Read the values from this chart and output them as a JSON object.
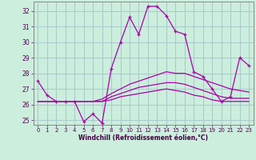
{
  "xlabel": "Windchill (Refroidissement éolien,°C)",
  "bg_color": "#cceedd",
  "grid_color": "#aacccc",
  "line_color": "#aa00aa",
  "ylim": [
    24.7,
    32.6
  ],
  "xlim": [
    -0.5,
    23.5
  ],
  "yticks": [
    25,
    26,
    27,
    28,
    29,
    30,
    31,
    32
  ],
  "xticks": [
    0,
    1,
    2,
    3,
    4,
    5,
    6,
    7,
    8,
    9,
    10,
    11,
    12,
    13,
    14,
    15,
    16,
    17,
    18,
    19,
    20,
    21,
    22,
    23
  ],
  "lines": [
    {
      "x": [
        0,
        1,
        2,
        3,
        4,
        5,
        6,
        7,
        8,
        9,
        10,
        11,
        12,
        13,
        14,
        15,
        16,
        17,
        18,
        19,
        20,
        21,
        22,
        23
      ],
      "y": [
        27.5,
        26.6,
        26.2,
        26.2,
        26.2,
        24.9,
        25.4,
        24.8,
        28.3,
        30.0,
        31.6,
        30.5,
        32.3,
        32.3,
        31.7,
        30.7,
        30.5,
        28.1,
        27.8,
        27.0,
        26.2,
        26.5,
        29.0,
        28.5
      ],
      "marker": true
    },
    {
      "x": [
        0,
        1,
        2,
        3,
        4,
        5,
        6,
        7,
        8,
        9,
        10,
        11,
        12,
        13,
        14,
        15,
        16,
        17,
        18,
        19,
        20,
        21,
        22,
        23
      ],
      "y": [
        26.2,
        26.2,
        26.2,
        26.2,
        26.2,
        26.2,
        26.2,
        26.35,
        26.7,
        27.0,
        27.3,
        27.5,
        27.7,
        27.9,
        28.1,
        28.0,
        28.0,
        27.8,
        27.6,
        27.4,
        27.2,
        27.0,
        26.9,
        26.8
      ],
      "marker": false
    },
    {
      "x": [
        0,
        1,
        2,
        3,
        4,
        5,
        6,
        7,
        8,
        9,
        10,
        11,
        12,
        13,
        14,
        15,
        16,
        17,
        18,
        19,
        20,
        21,
        22,
        23
      ],
      "y": [
        26.2,
        26.2,
        26.2,
        26.2,
        26.2,
        26.2,
        26.2,
        26.2,
        26.5,
        26.7,
        26.9,
        27.1,
        27.2,
        27.3,
        27.4,
        27.4,
        27.3,
        27.1,
        26.9,
        26.7,
        26.5,
        26.4,
        26.4,
        26.4
      ],
      "marker": false
    },
    {
      "x": [
        0,
        1,
        2,
        3,
        4,
        5,
        6,
        7,
        8,
        9,
        10,
        11,
        12,
        13,
        14,
        15,
        16,
        17,
        18,
        19,
        20,
        21,
        22,
        23
      ],
      "y": [
        26.2,
        26.2,
        26.2,
        26.2,
        26.2,
        26.2,
        26.2,
        26.2,
        26.3,
        26.5,
        26.6,
        26.7,
        26.8,
        26.9,
        27.0,
        26.9,
        26.8,
        26.6,
        26.5,
        26.3,
        26.2,
        26.2,
        26.2,
        26.2
      ],
      "marker": false
    }
  ]
}
